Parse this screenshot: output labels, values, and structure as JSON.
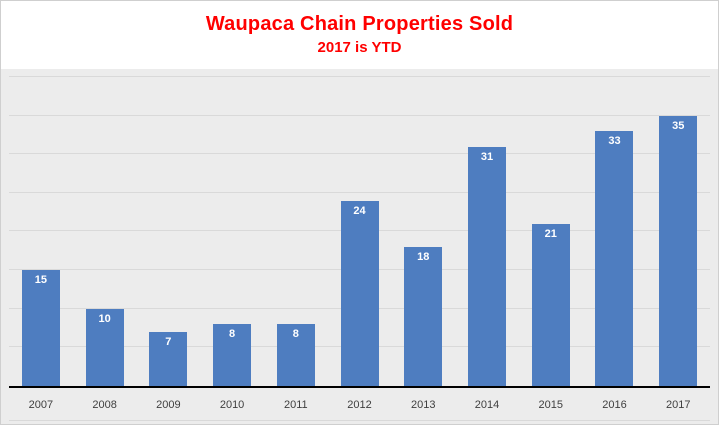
{
  "chart_data": {
    "type": "bar",
    "title": "Waupaca Chain Properties Sold",
    "subtitle": "2017 is YTD",
    "categories": [
      "2007",
      "2008",
      "2009",
      "2010",
      "2011",
      "2012",
      "2013",
      "2014",
      "2015",
      "2016",
      "2017"
    ],
    "values": [
      15,
      10,
      7,
      8,
      8,
      24,
      18,
      31,
      21,
      33,
      35
    ],
    "xlabel": "",
    "ylabel": "",
    "ylim": [
      0,
      40
    ],
    "gridline_step": 5,
    "grid": true,
    "legend": false,
    "value_labels_position": "inside-top",
    "colors": {
      "bar": "#4e7dc0",
      "title": "#ff0000",
      "plot_background": "#ececec",
      "gridline": "#d9d9d9",
      "axis": "#000000",
      "value_label": "#ffffff",
      "tick_label": "#3f3f3f"
    }
  }
}
